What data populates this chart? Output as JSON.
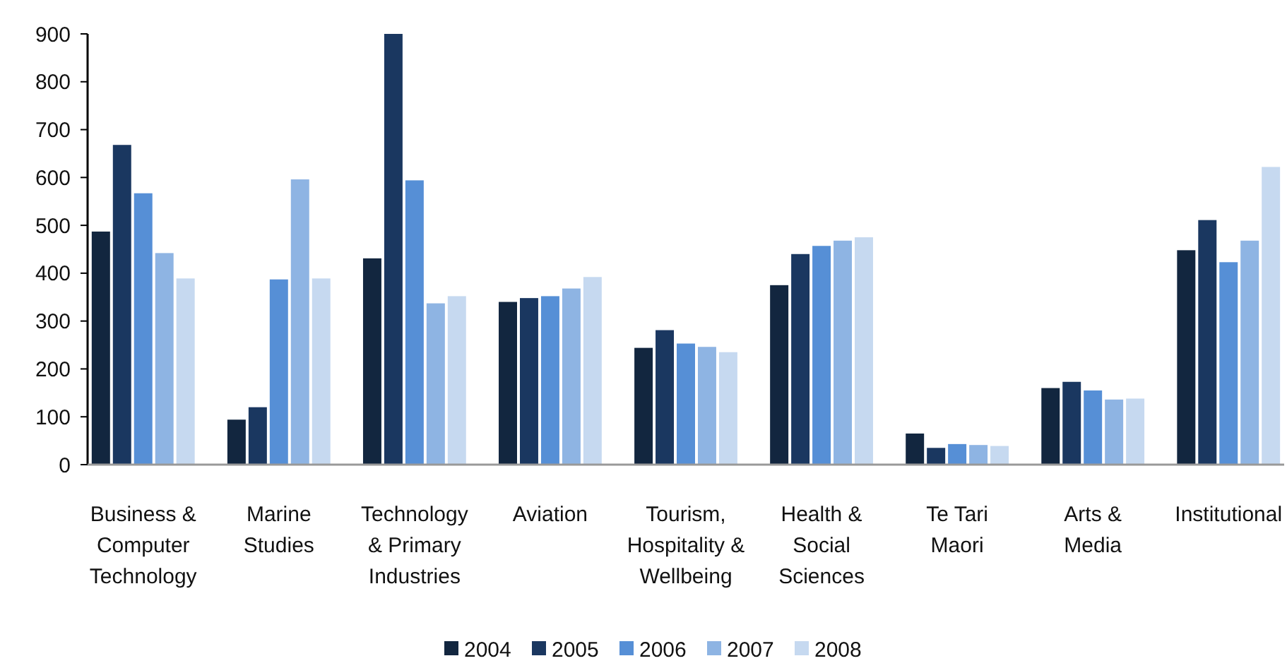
{
  "chart_data": {
    "type": "bar",
    "categories": [
      "Business &\nComputer\nTechnology",
      "Marine\nStudies",
      "Technology\n& Primary\nIndustries",
      "Aviation",
      "Tourism,\nHospitality &\nWellbeing",
      "Health &\nSocial\nSciences",
      "Te Tari\nMaori",
      "Arts &\nMedia",
      "Institutional"
    ],
    "series": [
      {
        "name": "2004",
        "color": "#12263f",
        "values": [
          487,
          94,
          431,
          340,
          244,
          375,
          65,
          160,
          448
        ]
      },
      {
        "name": "2005",
        "color": "#1a3760",
        "values": [
          668,
          120,
          900,
          348,
          281,
          440,
          35,
          173,
          511
        ]
      },
      {
        "name": "2006",
        "color": "#568fd6",
        "values": [
          567,
          387,
          594,
          352,
          253,
          457,
          43,
          155,
          423
        ]
      },
      {
        "name": "2007",
        "color": "#8eb4e3",
        "values": [
          442,
          596,
          337,
          368,
          246,
          468,
          41,
          136,
          468
        ]
      },
      {
        "name": "2008",
        "color": "#c6d9f0",
        "values": [
          389,
          389,
          352,
          392,
          235,
          475,
          39,
          138,
          622
        ]
      }
    ],
    "ylim": [
      0,
      900
    ],
    "yticks": [
      0,
      100,
      200,
      300,
      400,
      500,
      600,
      700,
      800,
      900
    ],
    "grid": false,
    "legend": "bottom"
  }
}
